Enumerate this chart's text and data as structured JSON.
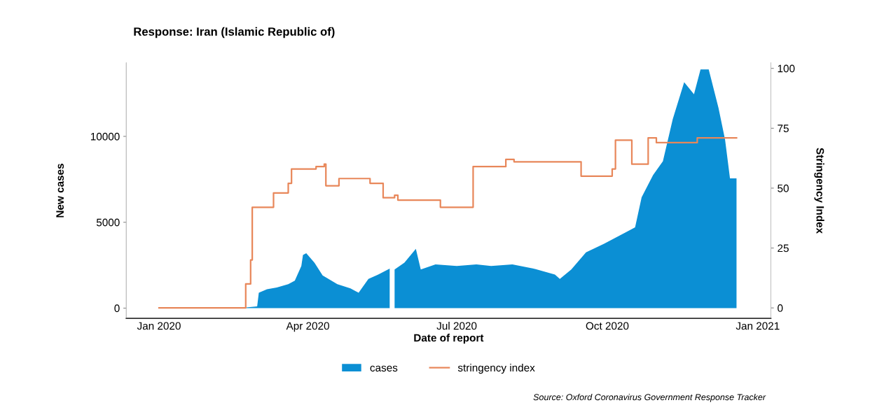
{
  "chart_data": {
    "type": "area",
    "title": "Response: Iran (Islamic Republic of)",
    "xlabel": "Date of report",
    "ylabel": "New cases",
    "y2label": "Stringency Index",
    "xlim": [
      "2019-12-12",
      "2021-01-09"
    ],
    "xticks": [
      {
        "value": "2020-01-01",
        "label": "Jan 2020"
      },
      {
        "value": "2020-04-01",
        "label": "Apr 2020"
      },
      {
        "value": "2020-07-01",
        "label": "Jul 2020"
      },
      {
        "value": "2020-10-01",
        "label": "Oct 2020"
      },
      {
        "value": "2021-01-01",
        "label": "Jan 2021"
      }
    ],
    "ylim": [
      -600,
      14280
    ],
    "yticks": [
      0,
      5000,
      10000
    ],
    "y2lim": [
      -4.4,
      102.3
    ],
    "y2ticks": [
      0,
      25,
      50,
      75,
      100
    ],
    "series": [
      {
        "name": "cases",
        "color": "#0b8fd4",
        "x": [
          "2020-02-19",
          "2020-03-01",
          "2020-03-02",
          "2020-03-07",
          "2020-03-13",
          "2020-03-20",
          "2020-03-24",
          "2020-03-28",
          "2020-03-29",
          "2020-03-31",
          "2020-04-05",
          "2020-04-10",
          "2020-04-19",
          "2020-04-27",
          "2020-05-02",
          "2020-05-08",
          "2020-05-14",
          "2020-05-21",
          "2020-05-23",
          "2020-05-24",
          "2020-05-30",
          "2020-06-06",
          "2020-06-09",
          "2020-06-18",
          "2020-07-01",
          "2020-07-13",
          "2020-07-22",
          "2020-08-04",
          "2020-08-17",
          "2020-08-30",
          "2020-09-02",
          "2020-09-09",
          "2020-09-18",
          "2020-09-29",
          "2020-10-14",
          "2020-10-18",
          "2020-10-22",
          "2020-10-29",
          "2020-11-04",
          "2020-11-10",
          "2020-11-17",
          "2020-11-23",
          "2020-11-27",
          "2020-12-02",
          "2020-12-08",
          "2020-12-12",
          "2020-12-15",
          "2020-12-19"
        ],
        "values": [
          0,
          100,
          900,
          1100,
          1200,
          1400,
          1600,
          2450,
          3100,
          3200,
          2650,
          1900,
          1400,
          1150,
          900,
          1700,
          1950,
          2300,
          null,
          2250,
          2650,
          3450,
          2250,
          2550,
          2450,
          2550,
          2450,
          2550,
          2300,
          1950,
          1700,
          2250,
          3250,
          3750,
          4500,
          4700,
          6450,
          7750,
          8550,
          11000,
          13150,
          12450,
          13900,
          13900,
          11650,
          9800,
          7550,
          7550
        ]
      },
      {
        "name": "stringency index",
        "type": "step",
        "axis": "y2",
        "color": "#e8875a",
        "x": [
          "2020-01-01",
          "2020-02-20",
          "2020-02-23",
          "2020-02-26",
          "2020-02-27",
          "2020-03-11",
          "2020-03-20",
          "2020-03-22",
          "2020-04-06",
          "2020-04-11",
          "2020-04-12",
          "2020-04-20",
          "2020-05-09",
          "2020-05-17",
          "2020-05-24",
          "2020-05-26",
          "2020-06-21",
          "2020-07-11",
          "2020-07-31",
          "2020-08-05",
          "2020-09-15",
          "2020-10-04",
          "2020-10-06",
          "2020-10-16",
          "2020-10-26",
          "2020-10-31",
          "2020-11-25",
          "2020-12-19"
        ],
        "values": [
          0,
          0,
          10,
          20,
          42,
          48,
          52,
          58,
          59,
          60,
          51,
          54,
          52,
          46,
          47,
          45,
          42,
          59,
          62,
          61,
          55,
          58,
          70,
          60,
          71,
          69,
          71,
          71
        ]
      }
    ],
    "legend": "bottom",
    "grid": false,
    "annotations": [
      "Source: Oxford Coronavirus Government Response Tracker"
    ]
  }
}
